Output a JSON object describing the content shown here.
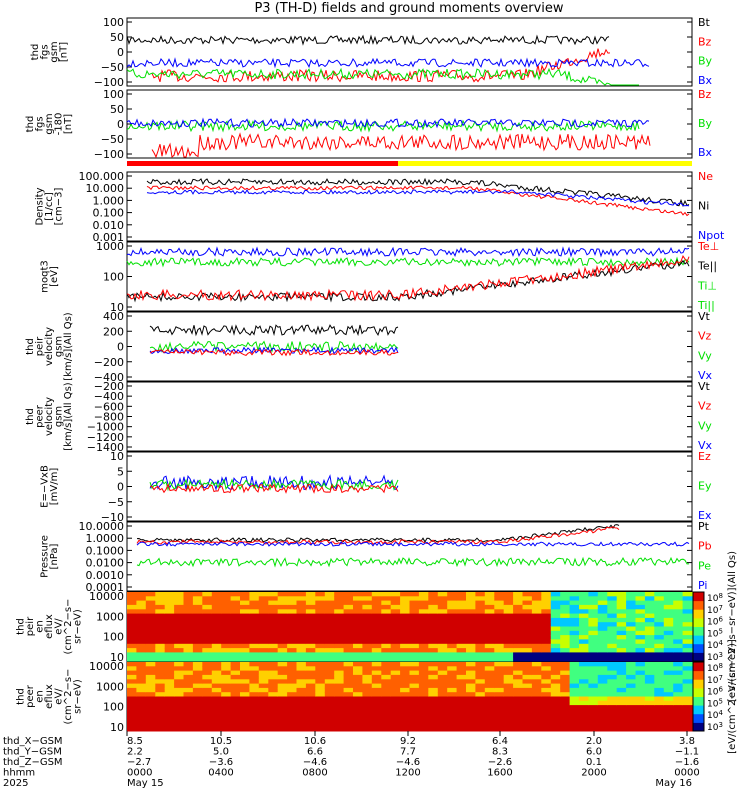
{
  "title": "P3 (TH-D) fields and ground moments overview",
  "colors": {
    "black": "#000000",
    "red": "#ff0000",
    "green": "#00e000",
    "blue": "#0000ff",
    "yellow": "#ffff00"
  },
  "chart_data": [
    {
      "type": "line",
      "id": "fgs_gsm",
      "ylabel": [
        "thd",
        "fgs",
        "gsm",
        "[nT]"
      ],
      "yticks": [
        "100",
        "50",
        "0",
        "−50",
        "−100"
      ],
      "ylim": [
        -100,
        100
      ],
      "legend": [
        {
          "name": "Bt",
          "color": "black"
        },
        {
          "name": "Bz",
          "color": "red"
        },
        {
          "name": "By",
          "color": "green"
        },
        {
          "name": "Bx",
          "color": "blue"
        }
      ]
    },
    {
      "type": "line",
      "id": "fgs_gsm_lim",
      "ylabel": [
        "thd",
        "fgs",
        "gsm",
        "-180",
        "[nT]"
      ],
      "yticks": [
        "100",
        "50",
        "0",
        "−50",
        "−100"
      ],
      "ylim": [
        -130,
        130
      ],
      "legend": [
        {
          "name": "Bz",
          "color": "red"
        },
        {
          "name": "By",
          "color": "green"
        },
        {
          "name": "Bx",
          "color": "blue"
        }
      ]
    },
    {
      "type": "line",
      "id": "density",
      "log": true,
      "ylabel": [
        "Density",
        "[1/cc]",
        "[cm−3]"
      ],
      "yticks": [
        "100.000",
        "10.000",
        "1.000",
        "0.100",
        "0.010",
        "0.001"
      ],
      "ylim": [
        0.0005,
        200
      ],
      "legend": [
        {
          "name": "Ne",
          "color": "red"
        },
        {
          "name": "Ni",
          "color": "black"
        },
        {
          "name": "Npot",
          "color": "blue"
        }
      ]
    },
    {
      "type": "line",
      "id": "temperature",
      "log": true,
      "ylabel": [
        "moqt3",
        "[eV]"
      ],
      "yticks": [
        "1000",
        "100",
        "10"
      ],
      "ylim": [
        5,
        8000
      ],
      "legend": [
        {
          "name": "Te⊥",
          "color": "red"
        },
        {
          "name": "Te||",
          "color": "black"
        },
        {
          "name": "Ti⊥",
          "color": "green"
        },
        {
          "name": "Ti||",
          "color": "green"
        }
      ]
    },
    {
      "type": "line",
      "id": "peir_velocity",
      "ylabel": [
        "thd",
        "peir",
        "velocity",
        "gsm",
        "[km/s](All Qs)"
      ],
      "yticks": [
        "400",
        "200",
        "0",
        "−200",
        "−400"
      ],
      "ylim": [
        -400,
        400
      ],
      "legend": [
        {
          "name": "Vt",
          "color": "black"
        },
        {
          "name": "Vz",
          "color": "red"
        },
        {
          "name": "Vy",
          "color": "green"
        },
        {
          "name": "Vx",
          "color": "blue"
        }
      ]
    },
    {
      "type": "line",
      "id": "peer_velocity",
      "ylabel": [
        "thd",
        "peer",
        "velocity",
        "gsm",
        "[km/s](All Qs)"
      ],
      "yticks": [
        "−200",
        "−400",
        "−600",
        "−800",
        "−1000",
        "−1200",
        "−1400"
      ],
      "ylim": [
        -1450,
        -150
      ],
      "legend": [
        {
          "name": "Vt",
          "color": "black"
        },
        {
          "name": "Vz",
          "color": "red"
        },
        {
          "name": "Vy",
          "color": "green"
        },
        {
          "name": "Vx",
          "color": "blue"
        }
      ]
    },
    {
      "type": "line",
      "id": "efield",
      "ylabel": [
        "E=−VxB",
        "[mV/m]"
      ],
      "yticks": [
        "10",
        "5",
        "0",
        "−5",
        "−10"
      ],
      "ylim": [
        -10,
        10
      ],
      "legend": [
        {
          "name": "Ez",
          "color": "red"
        },
        {
          "name": "Ey",
          "color": "green"
        },
        {
          "name": "Ex",
          "color": "blue"
        }
      ]
    },
    {
      "type": "line",
      "id": "pressure",
      "log": true,
      "ylabel": [
        "Pressure",
        "[nPa]"
      ],
      "yticks": [
        "10.0000",
        "1.0000",
        "0.1000",
        "0.0100",
        "0.0010",
        "0.0001"
      ],
      "ylim": [
        5e-05,
        30
      ],
      "legend": [
        {
          "name": "Pt",
          "color": "black"
        },
        {
          "name": "Pb",
          "color": "red"
        },
        {
          "name": "Pe",
          "color": "green"
        },
        {
          "name": "Pi",
          "color": "blue"
        }
      ]
    },
    {
      "type": "heatmap",
      "id": "peir_eflux",
      "ylabel": [
        "thd",
        "peir",
        "en",
        "eflux",
        "eV/",
        "(cm^2−s−",
        "sr−eV)"
      ],
      "yticks": [
        "10000",
        "1000",
        "100",
        "10"
      ],
      "colorbar": {
        "label": "[eV/(cm^2−s−sr−eV)](All Qs)",
        "ticks": [
          "10^8",
          "10^7",
          "10^6",
          "10^5",
          "10^4",
          "10^3"
        ]
      }
    },
    {
      "type": "heatmap",
      "id": "peer_eflux",
      "ylabel": [
        "thd",
        "peer",
        "en",
        "eflux",
        "eV/",
        "(cm^2−s−",
        "sr−eV)"
      ],
      "yticks": [
        "10000",
        "1000",
        "100",
        "10"
      ],
      "colorbar": {
        "label": "[eV/(cm^2−s−sr−eV)]",
        "ticks": [
          "10^8",
          "10^7",
          "10^6",
          "10^5",
          "10^4",
          "10^3"
        ]
      }
    }
  ],
  "x_axis": {
    "rows": [
      {
        "label": "thd_X−GSM",
        "values": [
          "8.5",
          "10.5",
          "10.6",
          "9.2",
          "6.4",
          "2.0",
          "3.8"
        ]
      },
      {
        "label": "thd_Y−GSM",
        "values": [
          "2.2",
          "5.0",
          "6.6",
          "7.7",
          "8.3",
          "6.0",
          "−1.1"
        ]
      },
      {
        "label": "thd_Z−GSM",
        "values": [
          "−2.7",
          "−3.6",
          "−4.6",
          "−4.6",
          "−2.6",
          "0.1",
          "−1.6"
        ]
      },
      {
        "label": "hhmm",
        "values": [
          "0000",
          "0400",
          "0800",
          "1200",
          "1600",
          "2000",
          "0000"
        ]
      }
    ],
    "year": "2025",
    "date_start": "May 15",
    "date_end": "May 16"
  }
}
